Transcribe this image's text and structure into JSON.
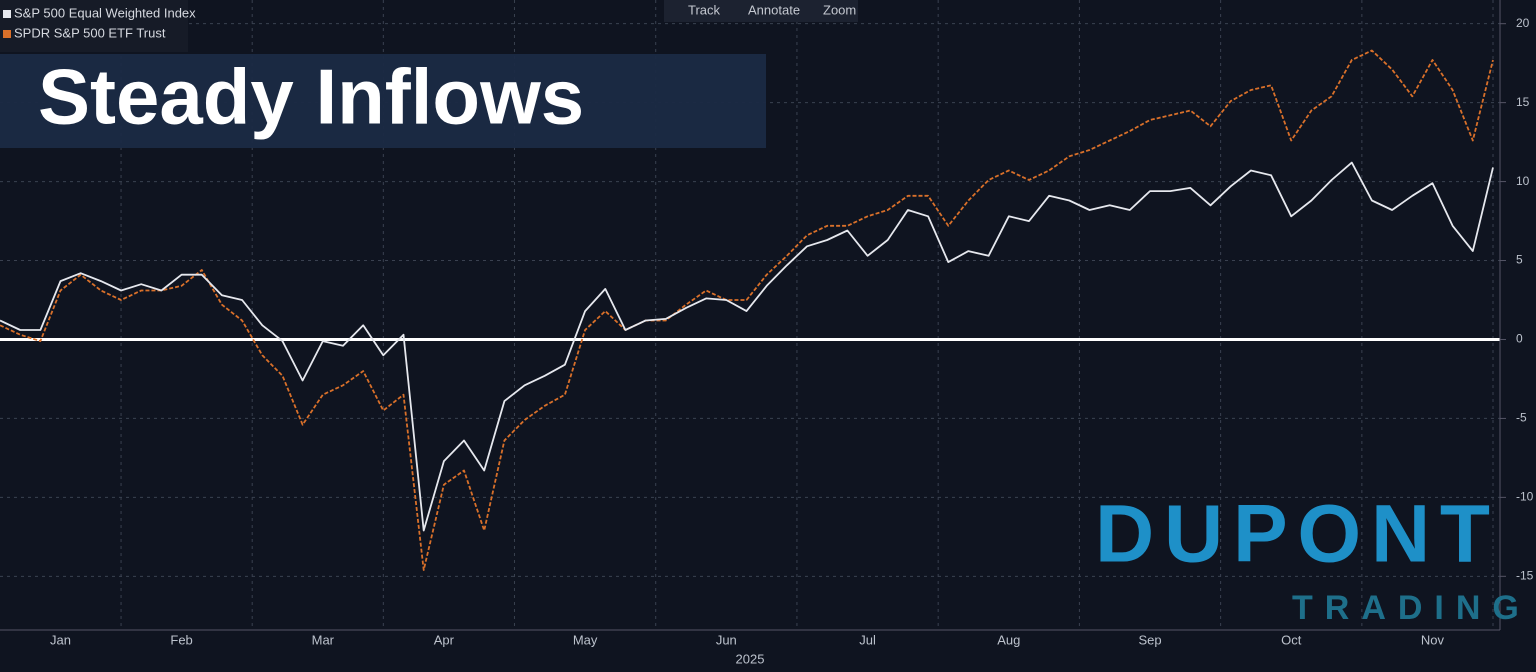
{
  "chart_data": {
    "type": "line",
    "categories": [
      null,
      null,
      null,
      "Jan",
      null,
      null,
      null,
      null,
      null,
      "Feb",
      null,
      null,
      null,
      null,
      null,
      null,
      "Mar",
      null,
      null,
      null,
      null,
      null,
      "Apr",
      null,
      null,
      null,
      null,
      null,
      null,
      "May",
      null,
      null,
      null,
      null,
      null,
      null,
      "Jun",
      null,
      null,
      null,
      null,
      null,
      null,
      "Jul",
      null,
      null,
      null,
      null,
      null,
      null,
      "Aug",
      null,
      null,
      null,
      null,
      null,
      null,
      "Sep",
      null,
      null,
      null,
      null,
      null,
      null,
      "Oct",
      null,
      null,
      null,
      null,
      null,
      null,
      "Nov",
      null,
      null,
      null
    ],
    "x_label": "2025",
    "series": [
      {
        "name": "SPDR S&P 500 ETF Trust",
        "color": "#d9702a",
        "dashed": true,
        "values": [
          0.9,
          0.3,
          -0.1,
          3.1,
          4.1,
          3.1,
          2.5,
          3.1,
          3.1,
          3.4,
          4.4,
          2.2,
          1.2,
          -1.0,
          -2.3,
          -5.4,
          -3.5,
          -2.9,
          -2.0,
          -4.5,
          -3.5,
          -14.6,
          -9.2,
          -8.3,
          -12.1,
          -6.4,
          -5.1,
          -4.2,
          -3.5,
          0.6,
          1.8,
          0.6,
          1.2,
          1.2,
          2.2,
          3.1,
          2.5,
          2.5,
          4.1,
          5.3,
          6.6,
          7.2,
          7.2,
          7.8,
          8.2,
          9.1,
          9.1,
          7.2,
          8.8,
          10.1,
          10.7,
          10.1,
          10.7,
          11.6,
          12.0,
          12.6,
          13.2,
          13.9,
          14.2,
          14.5,
          13.5,
          15.1,
          15.8,
          16.1,
          12.6,
          14.5,
          15.4,
          17.7,
          18.3,
          17.1,
          15.4,
          17.7,
          15.8,
          12.6,
          17.7
        ]
      },
      {
        "name": "S&P 500 Equal Weighted Index",
        "color": "#e6e8ee",
        "dashed": false,
        "values": [
          1.2,
          0.6,
          0.6,
          3.7,
          4.2,
          3.7,
          3.1,
          3.5,
          3.1,
          4.1,
          4.1,
          2.8,
          2.5,
          0.9,
          -0.1,
          -2.6,
          -0.1,
          -0.4,
          0.9,
          -1.0,
          0.3,
          -12.1,
          -7.7,
          -6.4,
          -8.3,
          -3.9,
          -2.9,
          -2.3,
          -1.6,
          1.8,
          3.2,
          0.6,
          1.2,
          1.3,
          2.0,
          2.6,
          2.5,
          1.8,
          3.4,
          4.7,
          5.9,
          6.3,
          6.9,
          5.3,
          6.3,
          8.2,
          7.8,
          4.9,
          5.6,
          5.3,
          7.8,
          7.5,
          9.1,
          8.8,
          8.2,
          8.5,
          8.2,
          9.4,
          9.4,
          9.6,
          8.5,
          9.7,
          10.7,
          10.4,
          7.8,
          8.8,
          10.1,
          11.2,
          8.8,
          8.2,
          9.1,
          9.9,
          7.2,
          5.6,
          10.9
        ]
      }
    ],
    "legend_order": [
      1,
      0
    ],
    "ylim": [
      -18.4,
      21.5
    ],
    "yticks": [
      -15,
      -10,
      -5,
      0,
      5,
      10,
      15,
      20
    ],
    "reference_line": 0,
    "grid": true
  },
  "title": "Steady Inflows",
  "toolbar": [
    "Track",
    "Annotate",
    "Zoom"
  ],
  "logo": {
    "name": "DUPONT",
    "tagline": "TRADING"
  }
}
